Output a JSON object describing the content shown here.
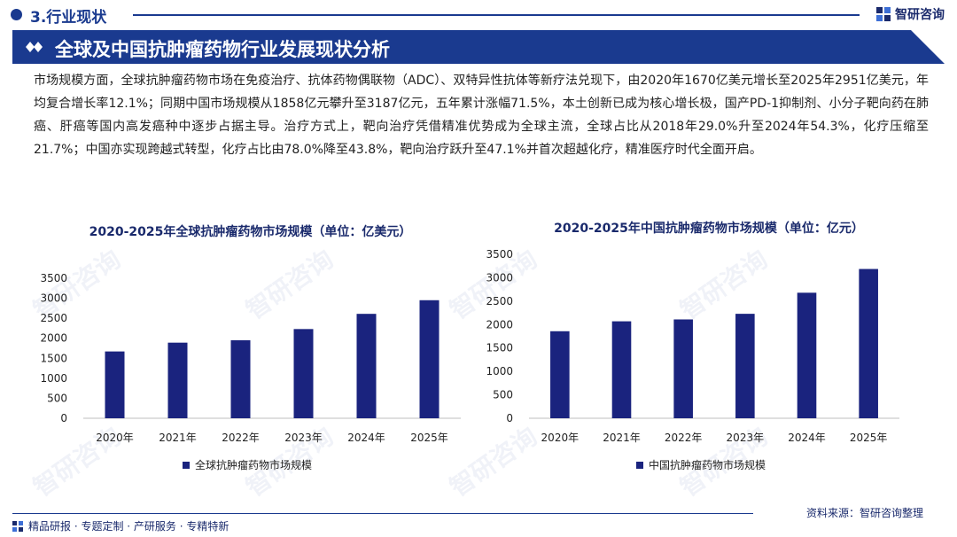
{
  "section": {
    "title": "3.行业现状"
  },
  "logo": {
    "text": "智研咨询"
  },
  "banner": {
    "title": "全球及中国抗肿瘤药物行业发展现状分析"
  },
  "paragraph": "市场规模方面，全球抗肿瘤药物市场在免疫治疗、抗体药物偶联物（ADC）、双特异性抗体等新疗法兑现下，由2020年1670亿美元增长至2025年2951亿美元，年均复合增长率12.1%；同期中国市场规模从1858亿元攀升至3187亿元，五年累计涨幅71.5%，本土创新已成为核心增长极，国产PD-1抑制剂、小分子靶向药在肺癌、肝癌等国内高发癌种中逐步占据主导。治疗方式上，靶向治疗凭借精准优势成为全球主流，全球占比从2018年29.0%升至2024年54.3%，化疗压缩至21.7%；中国亦实现跨越式转型，化疗占比由78.0%降至43.8%，靶向治疗跃升至47.1%并首次超越化疗，精准医疗时代全面开启。",
  "chart_data": [
    {
      "type": "bar",
      "title": "2020-2025年全球抗肿瘤药物市场规模（单位：亿美元）",
      "categories": [
        "2020年",
        "2021年",
        "2022年",
        "2023年",
        "2024年",
        "2025年"
      ],
      "series": [
        {
          "name": "全球抗肿瘤药物市场规模",
          "values": [
            1670,
            1890,
            1950,
            2230,
            2610,
            2951
          ]
        }
      ],
      "ylim": [
        0,
        3500
      ],
      "yticks": [
        "0",
        "500",
        "1000",
        "1500",
        "2000",
        "2500",
        "3000",
        "3500"
      ],
      "legend": "bottom",
      "grid": false,
      "color": "#1a237e"
    },
    {
      "type": "bar",
      "title": "2020-2025年中国抗肿瘤药物市场规模（单位：亿元）",
      "categories": [
        "2020年",
        "2021年",
        "2022年",
        "2023年",
        "2024年",
        "2025年"
      ],
      "series": [
        {
          "name": "中国抗肿瘤药物市场规模",
          "values": [
            1858,
            2070,
            2110,
            2230,
            2680,
            3187
          ]
        }
      ],
      "ylim": [
        0,
        3500
      ],
      "yticks": [
        "0",
        "500",
        "1000",
        "1500",
        "2000",
        "2500",
        "3000",
        "3500"
      ],
      "legend": "bottom",
      "grid": false,
      "color": "#1a237e"
    }
  ],
  "footer": {
    "left": "精品研报 · 专题定制 · 产研服务 · 专精特新",
    "source": "资料来源：智研咨询整理"
  },
  "watermark": "智研咨询"
}
